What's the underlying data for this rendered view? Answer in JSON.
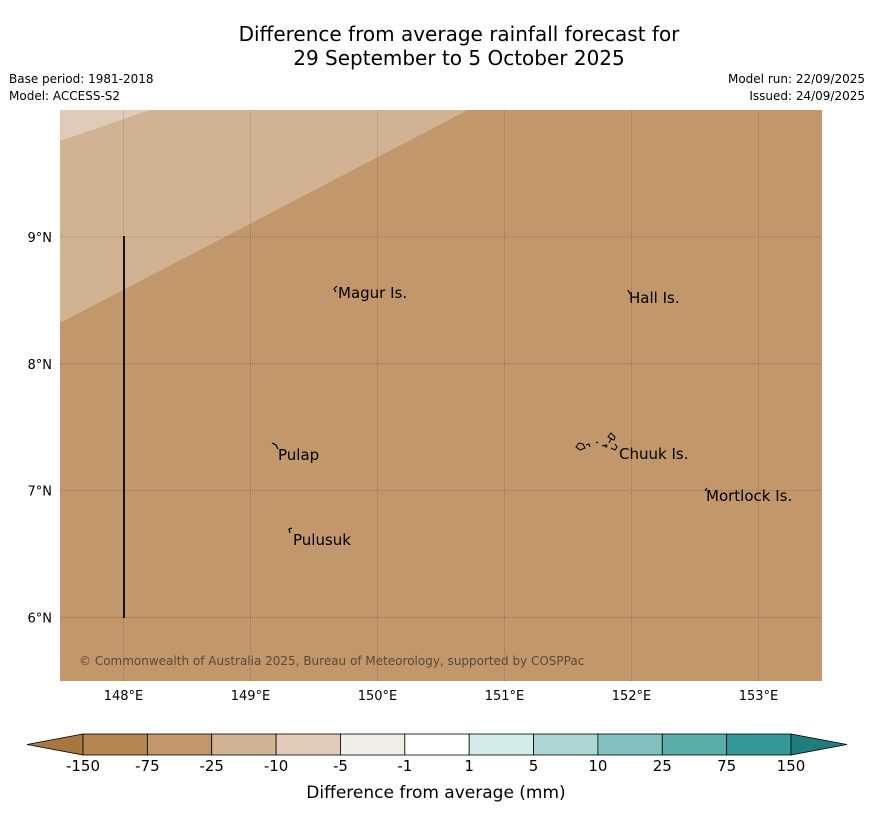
{
  "title_line1": "Difference from average rainfall forecast for",
  "title_line2": "29 September to 5 October 2025",
  "base_period": "Base period: 1981-2018",
  "model": "Model: ACCESS-S2",
  "model_run": "Model run: 22/09/2025",
  "issued": "Issued: 24/09/2025",
  "copyright": "© Commonwealth of Australia 2025, Bureau of Meteorology, supported by COSPPac",
  "map": {
    "lon_range": [
      147.5,
      153.5
    ],
    "lat_range": [
      5.5,
      10.0
    ],
    "lat_ticks": [
      "9°N",
      "8°N",
      "7°N",
      "6°N"
    ],
    "lon_ticks": [
      "148°E",
      "149°E",
      "150°E",
      "151°E",
      "152°E",
      "153°E"
    ],
    "places": [
      {
        "name": "Magur Is.",
        "lon": 149.67,
        "lat": 8.58
      },
      {
        "name": "Hall Is.",
        "lon": 151.97,
        "lat": 8.53
      },
      {
        "name": "Pulap",
        "lon": 149.18,
        "lat": 7.32
      },
      {
        "name": "Chuuk Is.",
        "lon": 151.85,
        "lat": 7.35
      },
      {
        "name": "Mortlock Is.",
        "lon": 152.6,
        "lat": 6.98
      },
      {
        "name": "Pulusuk",
        "lon": 149.3,
        "lat": 6.65
      }
    ],
    "fill_colors": {
      "base": "#c1976b",
      "light": "#d1b293",
      "lighter": "#e1cbb8"
    }
  },
  "colorbar": {
    "labels": [
      "-150",
      "-75",
      "-25",
      "-10",
      "-5",
      "-1",
      "1",
      "5",
      "10",
      "25",
      "75",
      "150"
    ],
    "colors": [
      "#a87641",
      "#b38550",
      "#c1976b",
      "#d1b293",
      "#e1cbb8",
      "#f0ece6",
      "#ffffff",
      "#d3ebea",
      "#aad6d5",
      "#81c1bf",
      "#59aeab",
      "#329997",
      "#1e7e7b"
    ],
    "title": "Difference from average (mm)"
  }
}
